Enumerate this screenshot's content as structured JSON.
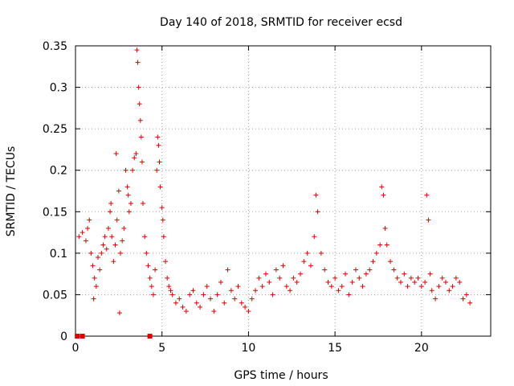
{
  "chart_data": {
    "type": "scatter",
    "title": "Day 140 of 2018, SRMTID for receiver ecsd",
    "xlabel": "GPS time / hours",
    "ylabel": "SRMTID / TECUs",
    "xlim": [
      0,
      24
    ],
    "ylim": [
      0,
      0.35
    ],
    "x_ticks": [
      0,
      5,
      10,
      15,
      20
    ],
    "y_ticks": [
      0,
      0.05,
      0.1,
      0.15,
      0.2,
      0.25,
      0.3,
      0.35
    ],
    "x_tick_labels": [
      "0",
      "5",
      "10",
      "15",
      "20"
    ],
    "y_tick_labels": [
      "0",
      "0.05",
      "0.1",
      "0.15",
      "0.2",
      "0.25",
      "0.3",
      "0.35"
    ],
    "grid": true,
    "marker": "plus",
    "color": "#e00000",
    "series": [
      {
        "name": "SRMTID",
        "points": [
          [
            0.2,
            0.12
          ],
          [
            0.4,
            0.125
          ],
          [
            0.6,
            0.115
          ],
          [
            0.7,
            0.13
          ],
          [
            0.8,
            0.14
          ],
          [
            0.9,
            0.1
          ],
          [
            1.0,
            0.085
          ],
          [
            1.05,
            0.045
          ],
          [
            1.1,
            0.07
          ],
          [
            1.2,
            0.06
          ],
          [
            1.3,
            0.095
          ],
          [
            1.4,
            0.08
          ],
          [
            1.5,
            0.1
          ],
          [
            1.6,
            0.11
          ],
          [
            1.7,
            0.12
          ],
          [
            1.8,
            0.105
          ],
          [
            1.9,
            0.13
          ],
          [
            2.0,
            0.15
          ],
          [
            2.05,
            0.16
          ],
          [
            2.1,
            0.12
          ],
          [
            2.2,
            0.09
          ],
          [
            2.3,
            0.11
          ],
          [
            2.35,
            0.22
          ],
          [
            2.4,
            0.14
          ],
          [
            2.5,
            0.175
          ],
          [
            2.55,
            0.028
          ],
          [
            2.6,
            0.1
          ],
          [
            2.7,
            0.115
          ],
          [
            2.8,
            0.13
          ],
          [
            2.9,
            0.2
          ],
          [
            3.0,
            0.18
          ],
          [
            3.05,
            0.17
          ],
          [
            3.1,
            0.15
          ],
          [
            3.2,
            0.16
          ],
          [
            3.3,
            0.2
          ],
          [
            3.4,
            0.215
          ],
          [
            3.5,
            0.22
          ],
          [
            3.55,
            0.345
          ],
          [
            3.6,
            0.33
          ],
          [
            3.65,
            0.3
          ],
          [
            3.7,
            0.28
          ],
          [
            3.75,
            0.26
          ],
          [
            3.8,
            0.24
          ],
          [
            3.85,
            0.21
          ],
          [
            3.9,
            0.16
          ],
          [
            4.0,
            0.12
          ],
          [
            4.1,
            0.1
          ],
          [
            4.2,
            0.085
          ],
          [
            4.3,
            0.07
          ],
          [
            4.4,
            0.06
          ],
          [
            4.5,
            0.05
          ],
          [
            4.6,
            0.08
          ],
          [
            4.7,
            0.2
          ],
          [
            4.75,
            0.24
          ],
          [
            4.8,
            0.23
          ],
          [
            4.85,
            0.21
          ],
          [
            4.9,
            0.18
          ],
          [
            5.0,
            0.155
          ],
          [
            5.05,
            0.14
          ],
          [
            5.1,
            0.12
          ],
          [
            5.2,
            0.09
          ],
          [
            5.3,
            0.07
          ],
          [
            5.4,
            0.06
          ],
          [
            5.5,
            0.055
          ],
          [
            5.6,
            0.05
          ],
          [
            5.8,
            0.04
          ],
          [
            6.0,
            0.045
          ],
          [
            6.2,
            0.035
          ],
          [
            6.4,
            0.03
          ],
          [
            6.6,
            0.05
          ],
          [
            6.8,
            0.055
          ],
          [
            7.0,
            0.04
          ],
          [
            7.2,
            0.035
          ],
          [
            7.4,
            0.05
          ],
          [
            7.6,
            0.06
          ],
          [
            7.8,
            0.045
          ],
          [
            8.0,
            0.03
          ],
          [
            8.2,
            0.05
          ],
          [
            8.4,
            0.065
          ],
          [
            8.6,
            0.04
          ],
          [
            8.8,
            0.08
          ],
          [
            9.0,
            0.055
          ],
          [
            9.2,
            0.045
          ],
          [
            9.4,
            0.06
          ],
          [
            9.6,
            0.04
          ],
          [
            9.8,
            0.035
          ],
          [
            10.0,
            0.03
          ],
          [
            10.2,
            0.045
          ],
          [
            10.4,
            0.055
          ],
          [
            10.6,
            0.07
          ],
          [
            10.8,
            0.06
          ],
          [
            11.0,
            0.075
          ],
          [
            11.2,
            0.065
          ],
          [
            11.4,
            0.05
          ],
          [
            11.6,
            0.08
          ],
          [
            11.8,
            0.07
          ],
          [
            12.0,
            0.085
          ],
          [
            12.2,
            0.06
          ],
          [
            12.4,
            0.055
          ],
          [
            12.6,
            0.07
          ],
          [
            12.8,
            0.065
          ],
          [
            13.0,
            0.075
          ],
          [
            13.2,
            0.09
          ],
          [
            13.4,
            0.1
          ],
          [
            13.6,
            0.085
          ],
          [
            13.8,
            0.12
          ],
          [
            13.9,
            0.17
          ],
          [
            14.0,
            0.15
          ],
          [
            14.2,
            0.1
          ],
          [
            14.4,
            0.08
          ],
          [
            14.6,
            0.065
          ],
          [
            14.8,
            0.06
          ],
          [
            15.0,
            0.07
          ],
          [
            15.2,
            0.055
          ],
          [
            15.4,
            0.06
          ],
          [
            15.6,
            0.075
          ],
          [
            15.8,
            0.05
          ],
          [
            16.0,
            0.065
          ],
          [
            16.2,
            0.08
          ],
          [
            16.4,
            0.07
          ],
          [
            16.6,
            0.06
          ],
          [
            16.8,
            0.075
          ],
          [
            17.0,
            0.08
          ],
          [
            17.2,
            0.09
          ],
          [
            17.4,
            0.1
          ],
          [
            17.6,
            0.11
          ],
          [
            17.7,
            0.18
          ],
          [
            17.8,
            0.17
          ],
          [
            17.9,
            0.13
          ],
          [
            18.0,
            0.11
          ],
          [
            18.2,
            0.09
          ],
          [
            18.4,
            0.08
          ],
          [
            18.6,
            0.07
          ],
          [
            18.8,
            0.065
          ],
          [
            19.0,
            0.075
          ],
          [
            19.2,
            0.06
          ],
          [
            19.4,
            0.07
          ],
          [
            19.6,
            0.065
          ],
          [
            19.8,
            0.07
          ],
          [
            20.0,
            0.06
          ],
          [
            20.2,
            0.065
          ],
          [
            20.3,
            0.17
          ],
          [
            20.4,
            0.14
          ],
          [
            20.5,
            0.075
          ],
          [
            20.6,
            0.055
          ],
          [
            20.8,
            0.045
          ],
          [
            21.0,
            0.06
          ],
          [
            21.2,
            0.07
          ],
          [
            21.4,
            0.065
          ],
          [
            21.6,
            0.055
          ],
          [
            21.8,
            0.06
          ],
          [
            22.0,
            0.07
          ],
          [
            22.2,
            0.065
          ],
          [
            22.4,
            0.045
          ],
          [
            22.6,
            0.05
          ],
          [
            22.8,
            0.04
          ],
          [
            0.1,
            0.0
          ],
          [
            0.4,
            0.0
          ],
          [
            4.3,
            0.0
          ]
        ]
      }
    ]
  }
}
